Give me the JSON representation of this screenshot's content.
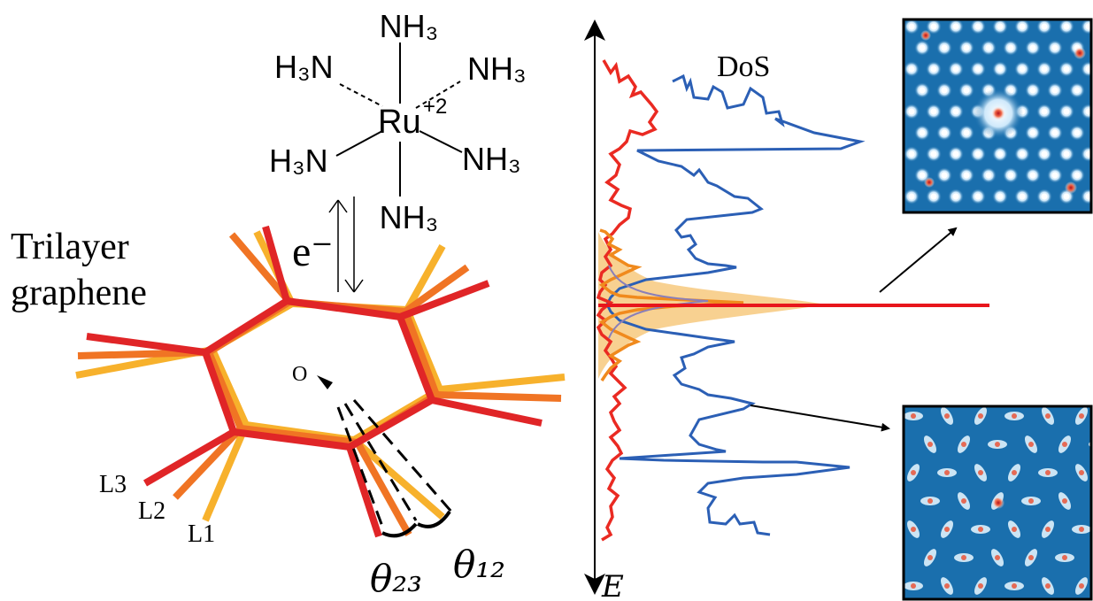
{
  "molecule": {
    "top_ligand": "NH₃",
    "upper_left_ligand": "H₃N",
    "upper_right_ligand": "NH₃",
    "center_metal": "Ru",
    "charge": "+2",
    "lower_left_ligand": "H₃N",
    "lower_right_ligand": "NH₃",
    "bottom_ligand": "NH₃"
  },
  "electron_label": "e⁻",
  "trilayer": {
    "title_line1": "Trilayer",
    "title_line2": "graphene",
    "layers": [
      {
        "label": "L1",
        "color": "#f7b12c"
      },
      {
        "label": "L2",
        "color": "#f07424"
      },
      {
        "label": "L3",
        "color": "#e02527"
      }
    ],
    "origin_label": "O",
    "angle_labels": [
      "θ₂₃",
      "θ₁₂"
    ]
  },
  "dos": {
    "label": "DoS",
    "axis_label": "E",
    "colors": {
      "red_curve": "#ea2a22",
      "blue_curve": "#2b5fb5",
      "orange_curve": "#f08a1d",
      "gaussian_fill": "#f7c97e",
      "flat_band": "#e8161c"
    }
  },
  "ldos_maps": {
    "background": "#1a6fad",
    "bright": "#eaf6ff",
    "hotspot": "#e23a2a"
  }
}
